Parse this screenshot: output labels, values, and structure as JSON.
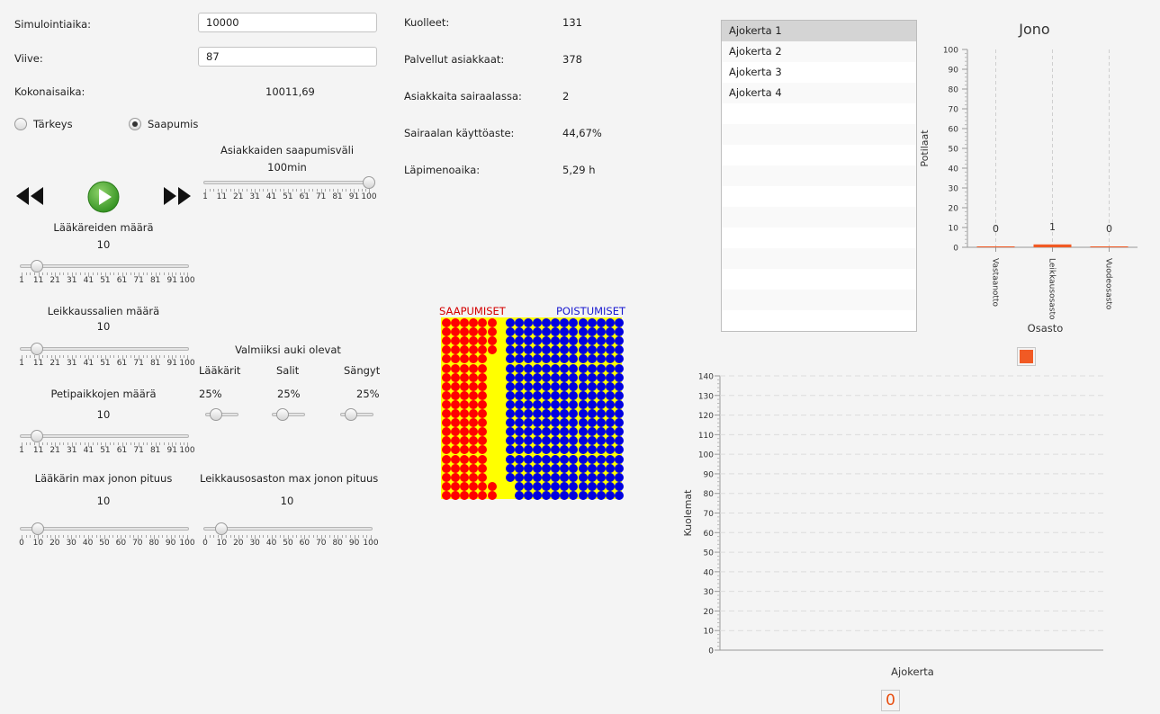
{
  "controls": {
    "sim_time_label": "Simulointiaika:",
    "sim_time_value": "10000",
    "delay_label": "Viive:",
    "delay_value": "87",
    "total_time_label": "Kokonaisaika:",
    "total_time_value": "10011,69",
    "priority_label": "Tärkeys",
    "arrival_label": "Saapumis",
    "selected_mode": "Saapumis"
  },
  "arrival_interval": {
    "title": "Asiakkaiden saapumisväli",
    "value_label": "100min",
    "value": 100,
    "ticks": [
      "1",
      "11",
      "21",
      "31",
      "41",
      "51",
      "61",
      "71",
      "81",
      "91",
      "100"
    ]
  },
  "doctors": {
    "title": "Lääkäreiden määrä",
    "value_label": "10",
    "value": 10,
    "ticks": [
      "1",
      "11",
      "21",
      "31",
      "41",
      "51",
      "61",
      "71",
      "81",
      "91",
      "100"
    ]
  },
  "operating_rooms": {
    "title": "Leikkaussalien määrä",
    "value_label": "10",
    "value": 10,
    "ticks": [
      "1",
      "11",
      "21",
      "31",
      "41",
      "51",
      "61",
      "71",
      "81",
      "91",
      "100"
    ]
  },
  "beds": {
    "title": "Petipaikkojen määrä",
    "value_label": "10",
    "value": 10,
    "ticks": [
      "1",
      "11",
      "21",
      "31",
      "41",
      "51",
      "61",
      "71",
      "81",
      "91",
      "100"
    ]
  },
  "availability": {
    "title": "Valmiiksi auki olevat",
    "items": [
      {
        "label": "Lääkärit",
        "value_label": "25%",
        "value": 25
      },
      {
        "label": "Salit",
        "value_label": "25%",
        "value": 25
      },
      {
        "label": "Sängyt",
        "value_label": "25%",
        "value": 25
      }
    ]
  },
  "doctor_queue": {
    "title": "Lääkärin max jonon pituus",
    "value_label": "10",
    "value": 10,
    "ticks": [
      "0",
      "10",
      "20",
      "30",
      "40",
      "50",
      "60",
      "70",
      "80",
      "90",
      "100"
    ]
  },
  "surgery_queue": {
    "title": "Leikkausosaston max jonon pituus",
    "value_label": "10",
    "value": 10,
    "ticks": [
      "0",
      "10",
      "20",
      "30",
      "40",
      "50",
      "60",
      "70",
      "80",
      "90",
      "100"
    ]
  },
  "stats": [
    {
      "label": "Kuolleet:",
      "value": "131"
    },
    {
      "label": "Palvellut asiakkaat:",
      "value": "378"
    },
    {
      "label": "Asiakkaita sairaalassa:",
      "value": "2"
    },
    {
      "label": "Sairaalan käyttöaste:",
      "value": "44,67%"
    },
    {
      "label": "Läpimenoaika:",
      "value": "5,29 h"
    }
  ],
  "visualization": {
    "arrivals_label": "SAAPUMISET",
    "departures_label": "POISTUMISET",
    "colors": {
      "arrival": "#ff0000",
      "departure": "#0000e0",
      "background": "#ffff00"
    }
  },
  "runs": {
    "items": [
      "Ajokerta 1",
      "Ajokerta 2",
      "Ajokerta 3",
      "Ajokerta 4"
    ],
    "selected": 0
  },
  "chart_data": [
    {
      "type": "bar",
      "title": "Jono",
      "xlabel": "Osasto",
      "ylabel": "Potilaat",
      "categories": [
        "Vastaanotto",
        "Leikkausosasto",
        "Vuodeosasto"
      ],
      "values": [
        0,
        1,
        0
      ],
      "value_labels": [
        "0",
        "1",
        "0"
      ],
      "ylim": [
        0,
        100
      ],
      "yticks": [
        0,
        10,
        20,
        30,
        40,
        50,
        60,
        70,
        80,
        90,
        100
      ],
      "bar_color": "#f15a24",
      "legend_placement": "bottom"
    },
    {
      "type": "bar",
      "title": "",
      "xlabel": "Ajokerta",
      "ylabel": "Kuolemat",
      "categories": [],
      "values": [],
      "ylim": [
        0,
        140
      ],
      "yticks": [
        0,
        10,
        20,
        30,
        40,
        50,
        60,
        70,
        80,
        90,
        100,
        110,
        120,
        130,
        140
      ],
      "legend_label": "0",
      "grid": true
    }
  ]
}
